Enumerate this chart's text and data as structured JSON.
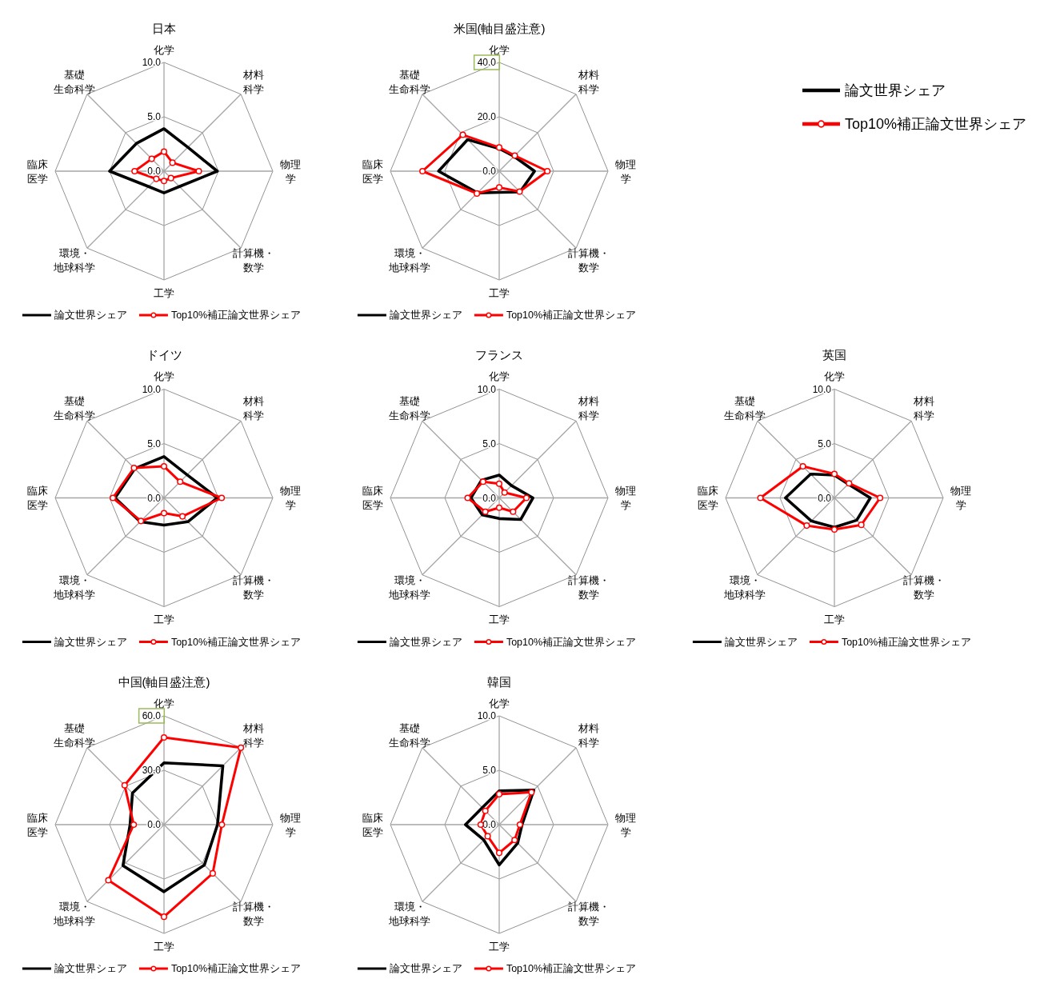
{
  "chart_data": [
    {
      "type": "radar",
      "title": "日本",
      "categories": [
        "化学",
        "材料科学",
        "物理学",
        "計算機・数学",
        "工学",
        "環境・地球科学",
        "臨床医学",
        "基礎生命科学"
      ],
      "series": [
        {
          "name": "論文世界シェア",
          "color": "#000000",
          "marker": "none",
          "values": [
            3.9,
            3.1,
            4.9,
            2.0,
            2.0,
            2.0,
            5.0,
            3.6
          ]
        },
        {
          "name": "Top10%補正論文世界シェア",
          "color": "#ff0000",
          "marker": "circle",
          "values": [
            1.8,
            1.1,
            3.2,
            0.9,
            0.9,
            1.0,
            2.7,
            1.6
          ]
        }
      ],
      "ylim": [
        0,
        10
      ],
      "yticks": [
        {
          "value": 0,
          "label": "0.0"
        },
        {
          "value": 5,
          "label": "5.0"
        },
        {
          "value": 10,
          "label": "10.0"
        }
      ],
      "grid": true,
      "legend": "bottom"
    },
    {
      "type": "radar",
      "title": "米国(軸目盛注意)",
      "categories": [
        "化学",
        "材料科学",
        "物理学",
        "計算機・数学",
        "工学",
        "環境・地球科学",
        "臨床医学",
        "基礎生命科学"
      ],
      "series": [
        {
          "name": "論文世界シェア",
          "color": "#000000",
          "marker": "none",
          "values": [
            8.3,
            7.7,
            13.0,
            10.8,
            7.8,
            11.3,
            22.3,
            16.4
          ]
        },
        {
          "name": "Top10%補正論文世界シェア",
          "color": "#ff0000",
          "marker": "circle",
          "values": [
            8.7,
            8.1,
            17.7,
            10.6,
            6.0,
            11.6,
            28.2,
            18.9
          ]
        }
      ],
      "ylim": [
        0,
        40
      ],
      "yticks": [
        {
          "value": 0,
          "label": "0.0"
        },
        {
          "value": 20,
          "label": "20.0"
        },
        {
          "value": 40,
          "label": "40.0"
        }
      ],
      "grid": true,
      "legend": "bottom"
    },
    {
      "type": "radar",
      "title": "ドイツ",
      "categories": [
        "化学",
        "材料科学",
        "物理学",
        "計算機・数学",
        "工学",
        "環境・地球科学",
        "臨床医学",
        "基礎生命科学"
      ],
      "series": [
        {
          "name": "論文世界シェア",
          "color": "#000000",
          "marker": "none",
          "values": [
            3.8,
            3.0,
            4.9,
            3.1,
            2.5,
            3.1,
            4.5,
            3.8
          ]
        },
        {
          "name": "Top10%補正論文世界シェア",
          "color": "#ff0000",
          "marker": "circle",
          "values": [
            2.9,
            2.1,
            5.3,
            2.4,
            1.4,
            3.0,
            4.7,
            3.9
          ]
        }
      ],
      "ylim": [
        0,
        10
      ],
      "yticks": [
        {
          "value": 0,
          "label": "0.0"
        },
        {
          "value": 5,
          "label": "5.0"
        },
        {
          "value": 10,
          "label": "10.0"
        }
      ],
      "grid": true,
      "legend": "bottom"
    },
    {
      "type": "radar",
      "title": "フランス",
      "categories": [
        "化学",
        "材料科学",
        "物理学",
        "計算機・数学",
        "工学",
        "環境・地球科学",
        "臨床医学",
        "基礎生命科学"
      ],
      "series": [
        {
          "name": "論文世界シェア",
          "color": "#000000",
          "marker": "none",
          "values": [
            2.1,
            1.6,
            3.1,
            2.8,
            1.9,
            2.2,
            2.6,
            2.3
          ]
        },
        {
          "name": "Top10%補正論文世界シェア",
          "color": "#ff0000",
          "marker": "circle",
          "values": [
            1.3,
            0.7,
            2.5,
            1.8,
            0.9,
            1.8,
            2.9,
            2.1
          ]
        }
      ],
      "ylim": [
        0,
        10
      ],
      "yticks": [
        {
          "value": 0,
          "label": "0.0"
        },
        {
          "value": 5,
          "label": "5.0"
        },
        {
          "value": 10,
          "label": "10.0"
        }
      ],
      "grid": true,
      "legend": "bottom"
    },
    {
      "type": "radar",
      "title": "英国",
      "categories": [
        "化学",
        "材料科学",
        "物理学",
        "計算機・数学",
        "工学",
        "環境・地球科学",
        "臨床医学",
        "基礎生命科学"
      ],
      "series": [
        {
          "name": "論文世界シェア",
          "color": "#000000",
          "marker": "none",
          "values": [
            2.1,
            1.8,
            3.3,
            2.9,
            2.7,
            3.0,
            4.5,
            3.1
          ]
        },
        {
          "name": "Top10%補正論文世界シェア",
          "color": "#ff0000",
          "marker": "circle",
          "values": [
            2.2,
            1.9,
            4.2,
            3.5,
            2.9,
            3.6,
            6.8,
            4.1
          ]
        }
      ],
      "ylim": [
        0,
        10
      ],
      "yticks": [
        {
          "value": 0,
          "label": "0.0"
        },
        {
          "value": 5,
          "label": "5.0"
        },
        {
          "value": 10,
          "label": "10.0"
        }
      ],
      "grid": true,
      "legend": "bottom"
    },
    {
      "type": "radar",
      "title": "中国(軸目盛注意)",
      "categories": [
        "化学",
        "材料科学",
        "物理学",
        "計算機・数学",
        "工学",
        "環境・地球科学",
        "臨床医学",
        "基礎生命科学"
      ],
      "series": [
        {
          "name": "論文世界シェア",
          "color": "#000000",
          "marker": "none",
          "values": [
            34.1,
            45.9,
            29.5,
            31.5,
            37.0,
            32.0,
            18.7,
            24.6
          ]
        },
        {
          "name": "Top10%補正論文世界シェア",
          "color": "#ff0000",
          "marker": "circle",
          "values": [
            48.1,
            60.0,
            31.9,
            38.0,
            50.8,
            43.4,
            16.7,
            30.7
          ]
        }
      ],
      "ylim": [
        0,
        60
      ],
      "yticks": [
        {
          "value": 0,
          "label": "0.0"
        },
        {
          "value": 30,
          "label": "30.0"
        },
        {
          "value": 60,
          "label": "60.0"
        }
      ],
      "grid": true,
      "legend": "bottom"
    },
    {
      "type": "radar",
      "title": "韓国",
      "categories": [
        "化学",
        "材料科学",
        "物理学",
        "計算機・数学",
        "工学",
        "環境・地球科学",
        "臨床医学",
        "基礎生命科学"
      ],
      "series": [
        {
          "name": "論文世界シェア",
          "color": "#000000",
          "marker": "none",
          "values": [
            3.1,
            4.5,
            2.1,
            2.4,
            3.7,
            2.0,
            3.1,
            2.2
          ]
        },
        {
          "name": "Top10%補正論文世界シェア",
          "color": "#ff0000",
          "marker": "circle",
          "values": [
            2.8,
            4.2,
            1.9,
            2.0,
            2.6,
            1.5,
            1.7,
            1.8
          ]
        }
      ],
      "ylim": [
        0,
        10
      ],
      "yticks": [
        {
          "value": 0,
          "label": "0.0"
        },
        {
          "value": 5,
          "label": "5.0"
        },
        {
          "value": 10,
          "label": "10.0"
        }
      ],
      "grid": true,
      "legend": "bottom"
    }
  ]
}
